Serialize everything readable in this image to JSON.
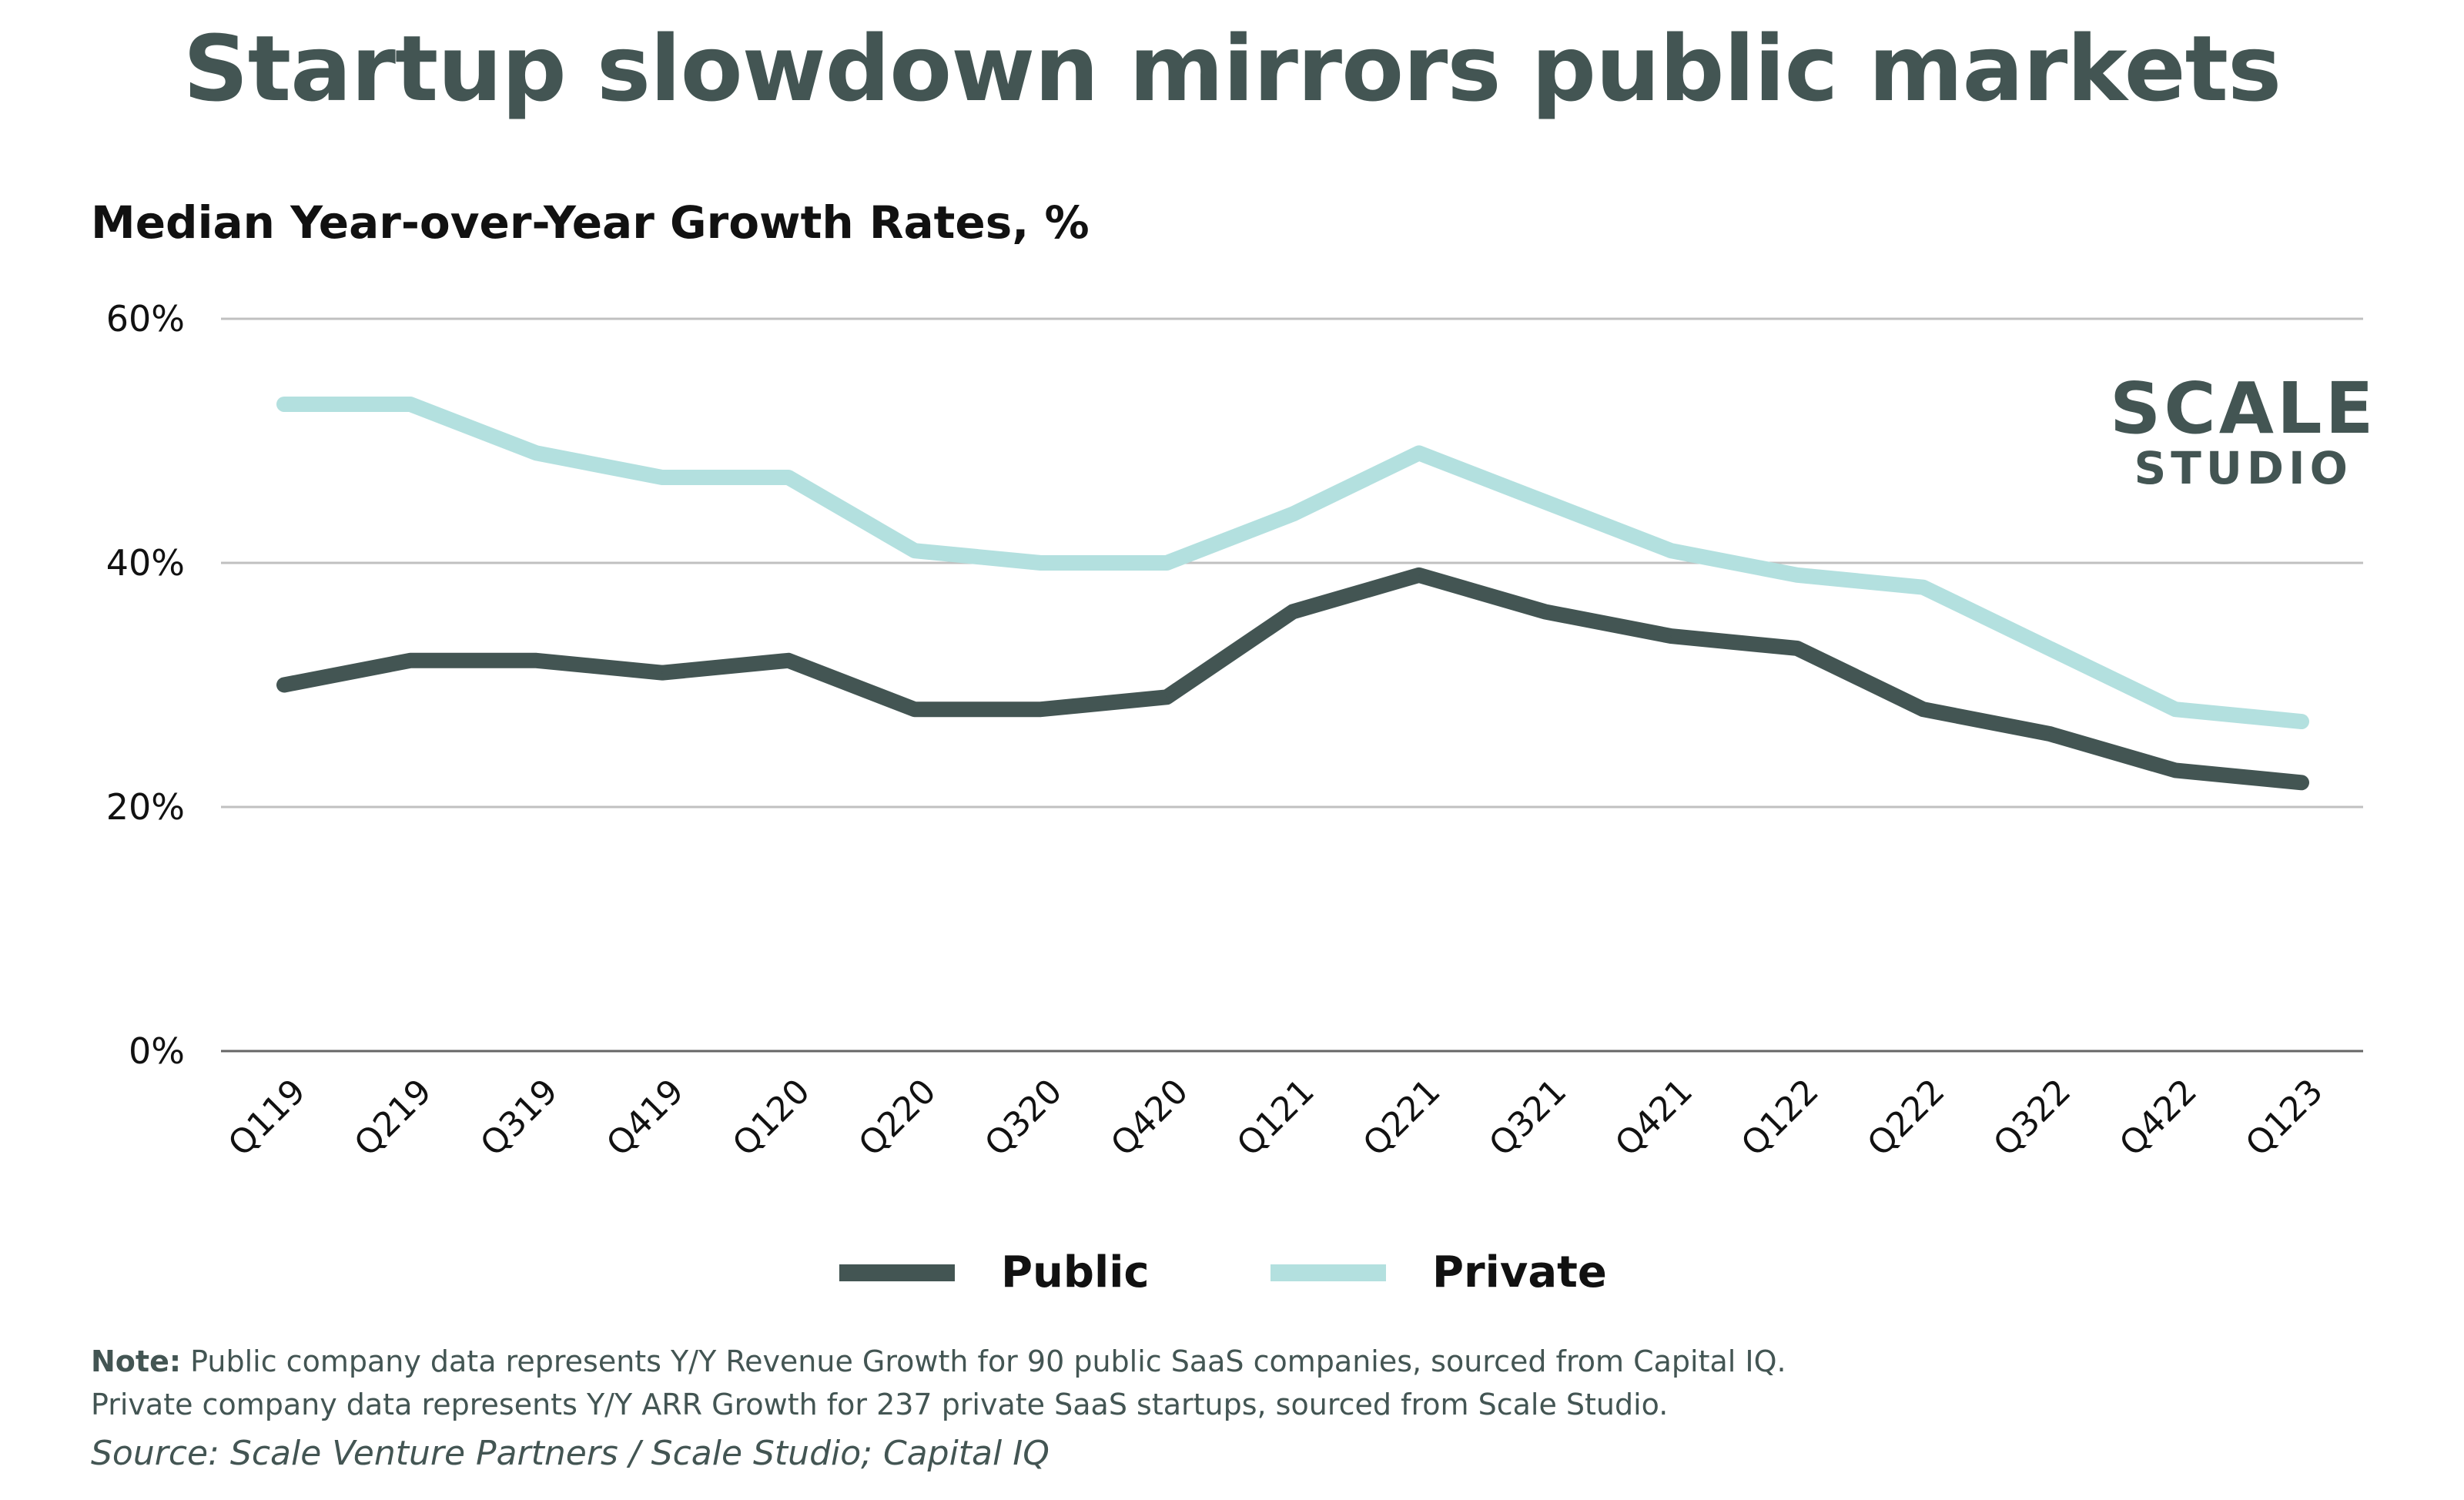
{
  "title": "Startup slowdown mirrors public markets",
  "logo": {
    "line1": "SCALE",
    "line2": "STUDIO"
  },
  "note_label": "Note:",
  "note_line1": "Public company data represents Y/Y Revenue Growth for 90 public SaaS companies, sourced from Capital IQ.",
  "note_line2": "Private company data represents Y/Y ARR Growth for 237 private SaaS startups, sourced from Scale Studio.",
  "source": "Source: Scale Venture Partners / Scale Studio; Capital IQ",
  "colors": {
    "public": "#435553",
    "private": "#b3e0df",
    "grid": "#c0c0c0"
  },
  "chart_data": {
    "type": "line",
    "title": "Startup slowdown mirrors public markets",
    "subtitle": "Median Year-over-Year Growth Rates, %",
    "categories": [
      "Q119",
      "Q219",
      "Q319",
      "Q419",
      "Q120",
      "Q220",
      "Q320",
      "Q420",
      "Q121",
      "Q221",
      "Q321",
      "Q421",
      "Q122",
      "Q222",
      "Q322",
      "Q422",
      "Q123"
    ],
    "series": [
      {
        "name": "Public",
        "values": [
          30,
          32,
          32,
          31,
          32,
          28,
          28,
          29,
          36,
          39,
          36,
          34,
          33,
          28,
          26,
          23,
          22
        ]
      },
      {
        "name": "Private",
        "values": [
          53,
          53,
          49,
          47,
          47,
          41,
          40,
          40,
          44,
          49,
          45,
          41,
          39,
          38,
          33,
          28,
          27
        ]
      }
    ],
    "ylim": [
      0,
      60
    ],
    "yticks": [
      "0%",
      "20%",
      "40%",
      "60%"
    ],
    "grid": true,
    "legend": "bottom"
  }
}
